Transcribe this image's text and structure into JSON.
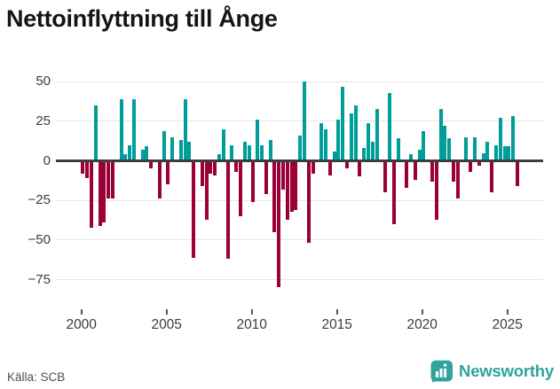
{
  "title": "Nettoinflyttning till Ånge",
  "source": "Källa: SCB",
  "brand": {
    "name": "Newsworthy"
  },
  "colors": {
    "positive": "#009E98",
    "negative": "#9B0038",
    "brand_teal": "#2EA49C",
    "zero_line": "#3D3D3D",
    "gridline": "#E6E6E6",
    "axis_text": "#3C3C3C"
  },
  "chart_data": {
    "type": "bar",
    "title": "Nettoinflyttning till Ånge",
    "frequency": "quarterly",
    "start_year": 2000,
    "start_quarter": 1,
    "values": [
      -8,
      -11,
      -42,
      35,
      -41,
      -39,
      -24,
      -24,
      0,
      39,
      4,
      10,
      39,
      0,
      7,
      9,
      -5,
      0,
      -24,
      19,
      -15,
      15,
      0,
      13,
      39,
      12,
      -61,
      1,
      -16,
      -37,
      -8,
      -9,
      4,
      20,
      -62,
      10,
      -7,
      -35,
      12,
      10,
      -26,
      26,
      10,
      -21,
      13,
      -45,
      -80,
      -18,
      -37,
      -32,
      -31,
      16,
      50,
      -52,
      -8,
      0,
      24,
      20,
      -9,
      6,
      26,
      47,
      -5,
      30,
      35,
      -10,
      8,
      24,
      12,
      33,
      0,
      -20,
      43,
      -40,
      14,
      0,
      -17,
      4,
      -12,
      7,
      19,
      0,
      -13,
      -37,
      33,
      22,
      14,
      -13,
      -24,
      0,
      15,
      -7,
      15,
      -3,
      5,
      12,
      -20,
      10,
      27,
      9,
      9,
      28,
      -16
    ],
    "y_ticks": [
      {
        "value": 50,
        "label": "50"
      },
      {
        "value": 25,
        "label": "25"
      },
      {
        "value": 0,
        "label": "0"
      },
      {
        "value": -25,
        "label": "−25"
      },
      {
        "value": -50,
        "label": "−50"
      },
      {
        "value": -75,
        "label": "−75"
      }
    ],
    "x_ticks": [
      {
        "year": 2000,
        "label": "2000"
      },
      {
        "year": 2005,
        "label": "2005"
      },
      {
        "year": 2010,
        "label": "2010"
      },
      {
        "year": 2015,
        "label": "2015"
      },
      {
        "year": 2020,
        "label": "2020"
      },
      {
        "year": 2025,
        "label": "2025"
      }
    ],
    "ylim": [
      -85,
      57
    ],
    "grid": true,
    "legend": false
  }
}
